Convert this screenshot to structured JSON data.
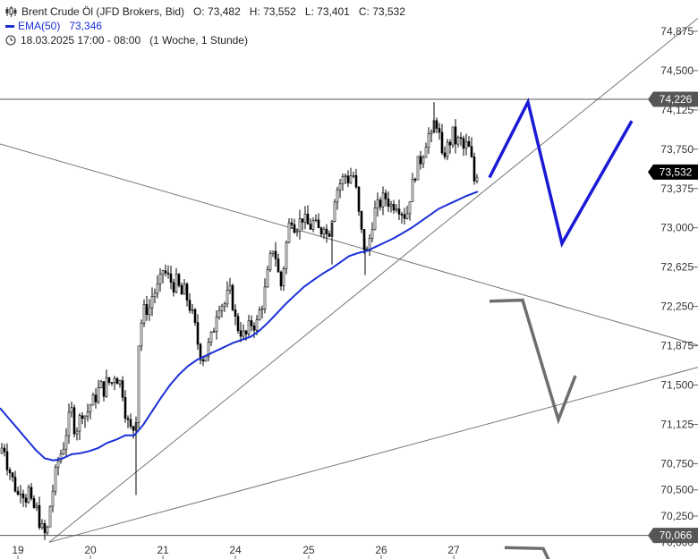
{
  "legend": {
    "instrument": "Brent Crude Öl (JFD Brokers, Bid)",
    "open": "O: 73,482",
    "high": "H: 73,552",
    "low": "L: 73,401",
    "close": "C: 73,532",
    "ema_label": "EMA(50)",
    "ema_value": "73,346",
    "timespan": "18.03.2025 17:00 - 08:00",
    "period": "(1 Woche, 1 Stunde)"
  },
  "colors": {
    "ema": "#1a2fd6",
    "candle": "#000000",
    "trendline": "#777777",
    "projection_blue": "#1a1ad6",
    "projection_grey": "#6e6e6e",
    "label_bg": "#555555",
    "current_bg": "#000000"
  },
  "chart_data": {
    "type": "candlestick",
    "y_ticks": [
      "74,875",
      "74,500",
      "74,125",
      "73,750",
      "73,375",
      "73,000",
      "72,625",
      "72,250",
      "71,875",
      "71,500",
      "71,125",
      "70,750",
      "70,500",
      "70,250",
      "70,000"
    ],
    "x_ticks": [
      "19",
      "20",
      "21",
      "24",
      "25",
      "26",
      "27"
    ],
    "ylim": [
      69.98,
      75.0
    ],
    "price_lines": [
      {
        "label": "74,226",
        "value": 74.226
      },
      {
        "label": "70,066",
        "value": 70.066
      }
    ],
    "current_price": {
      "label": "73,532",
      "value": 73.532
    },
    "close_path": [
      [
        0,
        70.85
      ],
      [
        4,
        70.95
      ],
      [
        8,
        70.75
      ],
      [
        12,
        70.65
      ],
      [
        16,
        70.55
      ],
      [
        20,
        70.45
      ],
      [
        24,
        70.55
      ],
      [
        28,
        70.4
      ],
      [
        32,
        70.5
      ],
      [
        36,
        70.3
      ],
      [
        40,
        70.35
      ],
      [
        44,
        70.2
      ],
      [
        48,
        70.1
      ],
      [
        52,
        70.05
      ],
      [
        56,
        70.35
      ],
      [
        60,
        70.55
      ],
      [
        64,
        70.75
      ],
      [
        68,
        70.85
      ],
      [
        72,
        70.95
      ],
      [
        76,
        71.15
      ],
      [
        80,
        71.25
      ],
      [
        84,
        71.05
      ],
      [
        88,
        71.15
      ],
      [
        92,
        71.25
      ],
      [
        96,
        71.2
      ],
      [
        100,
        71.3
      ],
      [
        104,
        71.35
      ],
      [
        108,
        71.4
      ],
      [
        112,
        71.5
      ],
      [
        116,
        71.45
      ],
      [
        120,
        71.55
      ],
      [
        124,
        71.5
      ],
      [
        128,
        71.6
      ],
      [
        132,
        71.55
      ],
      [
        136,
        71.5
      ],
      [
        140,
        71.25
      ],
      [
        144,
        71.1
      ],
      [
        148,
        71.05
      ],
      [
        152,
        71.2
      ],
      [
        155,
        71.9
      ],
      [
        158,
        72.1
      ],
      [
        162,
        72.25
      ],
      [
        166,
        72.2
      ],
      [
        170,
        72.35
      ],
      [
        174,
        72.4
      ],
      [
        178,
        72.45
      ],
      [
        182,
        72.6
      ],
      [
        186,
        72.55
      ],
      [
        190,
        72.5
      ],
      [
        194,
        72.45
      ],
      [
        198,
        72.5
      ],
      [
        202,
        72.35
      ],
      [
        206,
        72.4
      ],
      [
        210,
        72.3
      ],
      [
        214,
        72.2
      ],
      [
        218,
        72.05
      ],
      [
        222,
        71.85
      ],
      [
        226,
        71.75
      ],
      [
        230,
        71.8
      ],
      [
        234,
        71.9
      ],
      [
        238,
        72.0
      ],
      [
        242,
        72.2
      ],
      [
        246,
        72.3
      ],
      [
        250,
        72.25
      ],
      [
        254,
        72.35
      ],
      [
        258,
        72.4
      ],
      [
        262,
        72.15
      ],
      [
        266,
        72.05
      ],
      [
        270,
        72.0
      ],
      [
        274,
        71.95
      ],
      [
        278,
        72.05
      ],
      [
        282,
        72.1
      ],
      [
        286,
        72.05
      ],
      [
        290,
        72.2
      ],
      [
        294,
        72.3
      ],
      [
        298,
        72.5
      ],
      [
        302,
        72.7
      ],
      [
        306,
        72.85
      ],
      [
        310,
        72.6
      ],
      [
        314,
        72.45
      ],
      [
        318,
        72.7
      ],
      [
        322,
        73.0
      ],
      [
        326,
        73.1
      ],
      [
        330,
        73.0
      ],
      [
        334,
        73.05
      ],
      [
        338,
        73.1
      ],
      [
        342,
        73.05
      ],
      [
        346,
        73.0
      ],
      [
        350,
        73.05
      ],
      [
        354,
        73.0
      ],
      [
        358,
        72.95
      ],
      [
        362,
        73.05
      ],
      [
        366,
        72.9
      ],
      [
        370,
        73.05
      ],
      [
        374,
        73.3
      ],
      [
        378,
        73.4
      ],
      [
        382,
        73.45
      ],
      [
        386,
        73.5
      ],
      [
        390,
        73.45
      ],
      [
        394,
        73.55
      ],
      [
        398,
        73.35
      ],
      [
        402,
        73.05
      ],
      [
        406,
        72.85
      ],
      [
        410,
        72.75
      ],
      [
        414,
        72.95
      ],
      [
        418,
        73.15
      ],
      [
        422,
        73.2
      ],
      [
        426,
        73.25
      ],
      [
        430,
        73.3
      ],
      [
        434,
        73.25
      ],
      [
        438,
        73.2
      ],
      [
        442,
        73.25
      ],
      [
        446,
        73.2
      ],
      [
        450,
        73.15
      ],
      [
        454,
        73.1
      ],
      [
        458,
        73.3
      ],
      [
        462,
        73.45
      ],
      [
        466,
        73.6
      ],
      [
        470,
        73.65
      ],
      [
        474,
        73.75
      ],
      [
        478,
        73.9
      ],
      [
        482,
        73.85
      ],
      [
        486,
        74.05
      ],
      [
        490,
        73.95
      ],
      [
        494,
        73.65
      ],
      [
        498,
        73.75
      ],
      [
        502,
        73.8
      ],
      [
        506,
        73.9
      ],
      [
        510,
        73.8
      ],
      [
        514,
        73.85
      ],
      [
        518,
        73.75
      ],
      [
        522,
        73.8
      ],
      [
        526,
        73.7
      ],
      [
        530,
        73.45
      ],
      [
        533,
        73.532
      ]
    ],
    "ema_path": [
      [
        0,
        71.28
      ],
      [
        10,
        71.18
      ],
      [
        20,
        71.08
      ],
      [
        30,
        70.98
      ],
      [
        40,
        70.88
      ],
      [
        50,
        70.8
      ],
      [
        60,
        70.78
      ],
      [
        70,
        70.8
      ],
      [
        80,
        70.84
      ],
      [
        90,
        70.85
      ],
      [
        100,
        70.87
      ],
      [
        110,
        70.9
      ],
      [
        120,
        70.95
      ],
      [
        130,
        70.98
      ],
      [
        140,
        71.02
      ],
      [
        150,
        71.02
      ],
      [
        160,
        71.12
      ],
      [
        170,
        71.25
      ],
      [
        180,
        71.38
      ],
      [
        190,
        71.5
      ],
      [
        200,
        71.6
      ],
      [
        210,
        71.68
      ],
      [
        220,
        71.74
      ],
      [
        230,
        71.78
      ],
      [
        240,
        71.82
      ],
      [
        250,
        71.86
      ],
      [
        260,
        71.9
      ],
      [
        270,
        71.93
      ],
      [
        280,
        71.96
      ],
      [
        290,
        72.02
      ],
      [
        300,
        72.1
      ],
      [
        310,
        72.19
      ],
      [
        320,
        72.28
      ],
      [
        330,
        72.36
      ],
      [
        340,
        72.44
      ],
      [
        350,
        72.5
      ],
      [
        360,
        72.56
      ],
      [
        370,
        72.61
      ],
      [
        380,
        72.67
      ],
      [
        390,
        72.73
      ],
      [
        400,
        72.76
      ],
      [
        410,
        72.78
      ],
      [
        420,
        72.82
      ],
      [
        430,
        72.86
      ],
      [
        440,
        72.9
      ],
      [
        450,
        72.95
      ],
      [
        460,
        73.0
      ],
      [
        470,
        73.06
      ],
      [
        480,
        73.12
      ],
      [
        490,
        73.18
      ],
      [
        500,
        73.22
      ],
      [
        510,
        73.26
      ],
      [
        520,
        73.3
      ],
      [
        534,
        73.346
      ]
    ],
    "projection_blue": [
      [
        547,
        73.48
      ],
      [
        590,
        74.2
      ],
      [
        628,
        72.85
      ],
      [
        706,
        74.02
      ]
    ],
    "projection_grey": [
      [
        547,
        72.3
      ],
      [
        584,
        72.31
      ],
      [
        624,
        71.17
      ],
      [
        643,
        71.59
      ]
    ],
    "projection_grey_stub": [
      [
        564,
        69.95
      ],
      [
        607,
        69.94
      ],
      [
        615,
        69.8
      ]
    ],
    "trendlines": [
      {
        "x1": 0,
        "v1": 73.8,
        "x2": 780,
        "v2": 71.88
      },
      {
        "x1": 55,
        "v1": 70.0,
        "x2": 780,
        "v2": 75.0
      },
      {
        "x1": 55,
        "v1": 70.0,
        "x2": 780,
        "v2": 71.67
      }
    ],
    "price_label_positions": [
      {
        "label": "74,226",
        "value": 74.226
      },
      {
        "label": "73,532",
        "value": 73.532
      },
      {
        "label": "70,066",
        "value": 70.066
      }
    ]
  }
}
